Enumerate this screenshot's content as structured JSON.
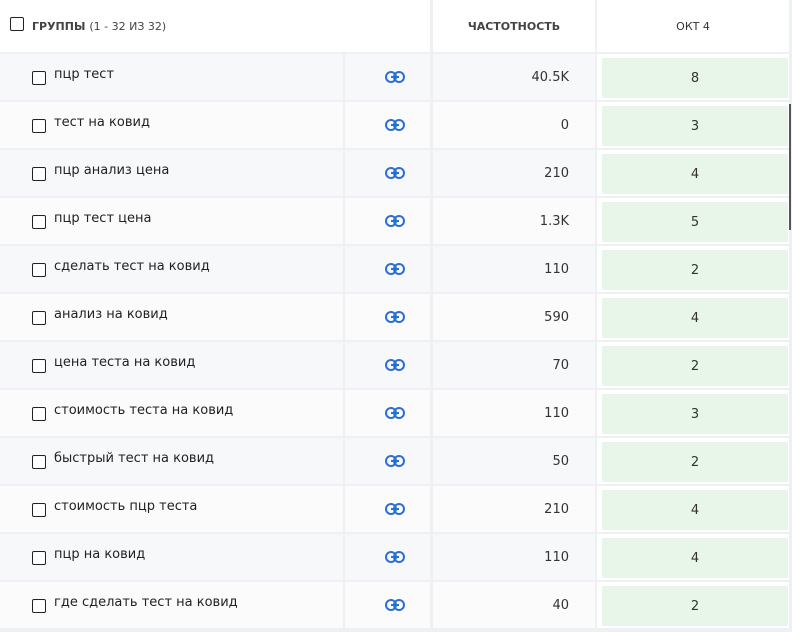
{
  "header": {
    "title": "ГРУППЫ",
    "count": "(1 - 32 ИЗ 32)",
    "frequency": "ЧАСТОТНОСТЬ",
    "date": "ОКТ 4"
  },
  "table": {
    "rows": [
      [
        "пцр тест",
        "40.5K",
        8
      ],
      [
        "тест на ковид",
        "0",
        3
      ],
      [
        "пцр анализ цена",
        "210",
        4
      ],
      [
        "пцр тест цена",
        "1.3K",
        5
      ],
      [
        "сделать тест на ковид",
        "110",
        2
      ],
      [
        "анализ на ковид",
        "590",
        4
      ],
      [
        "цена теста на ковид",
        "70",
        2
      ],
      [
        "стоимость теста на ковид",
        "110",
        3
      ],
      [
        "быстрый тест на ковид",
        "50",
        2
      ],
      [
        "стоимость пцр теста",
        "210",
        4
      ],
      [
        "пцр на ковид",
        "110",
        4
      ],
      [
        "где сделать тест на ковид",
        "40",
        2
      ]
    ]
  }
}
